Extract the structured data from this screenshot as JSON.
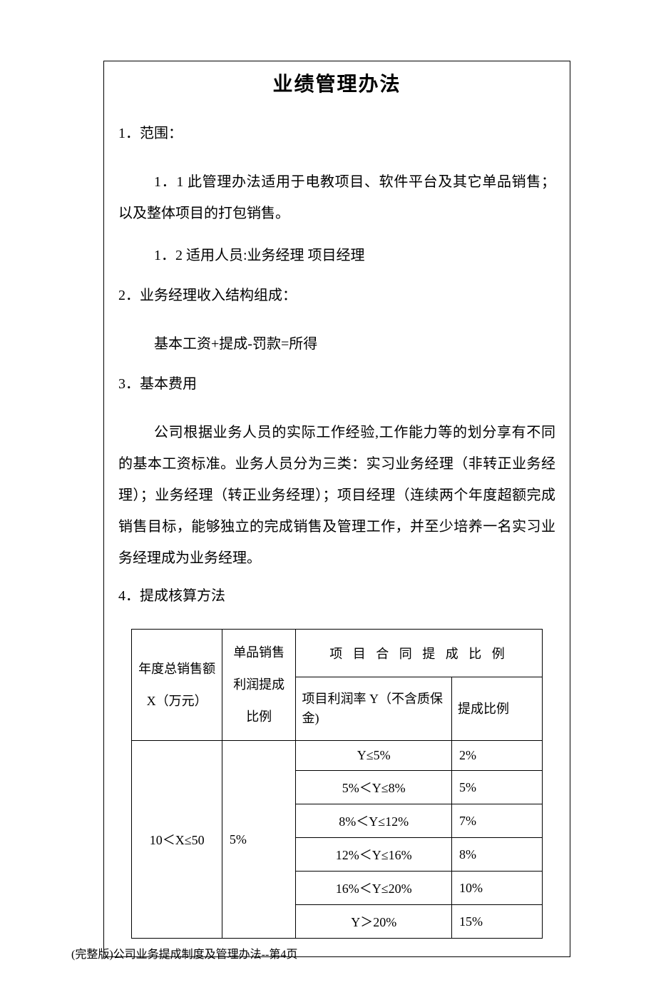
{
  "title": "业绩管理办法",
  "sections": {
    "s1": {
      "heading": "1．范围：",
      "item1": "1．1 此管理办法适用于电教项目、软件平台及其它单品销售；以及整体项目的打包销售。",
      "item2": "1．2 适用人员:业务经理  项目经理"
    },
    "s2": {
      "heading": "2．业务经理收入结构组成：",
      "formula": "基本工资+提成-罚款=所得"
    },
    "s3": {
      "heading": "3．基本费用",
      "body": "公司根据业务人员的实际工作经验,工作能力等的划分享有不同的基本工资标准。业务人员分为三类：实习业务经理（非转正业务经理）；业务经理（转正业务经理）；项目经理（连续两个年度超额完成销售目标，能够独立的完成销售及管理工作，并至少培养一名实习业务经理成为业务经理。"
    },
    "s4": {
      "heading": "4．提成核算方法"
    }
  },
  "table": {
    "header": {
      "col1": "年度总销售额 X（万元）",
      "col2": "单品销售利润提成比例",
      "col3_merged": "项 目 合 同 提 成 比 例",
      "col3_sub": "项目利润率 Y（不含质保金)",
      "col4_sub": "提成比例"
    },
    "range1": {
      "x_range": "10＜X≤50",
      "single_rate": "5%",
      "rows": [
        {
          "y": "Y≤5%",
          "rate": "2%"
        },
        {
          "y": "5%＜Y≤8%",
          "rate": "5%"
        },
        {
          "y": "8%＜Y≤12%",
          "rate": "7%"
        },
        {
          "y": "12%＜Y≤16%",
          "rate": "8%"
        },
        {
          "y": "16%＜Y≤20%",
          "rate": "10%"
        },
        {
          "y": "Y＞20%",
          "rate": "15%"
        }
      ]
    }
  },
  "footer": "(完整版)公司业务提成制度及管理办法--第4页"
}
